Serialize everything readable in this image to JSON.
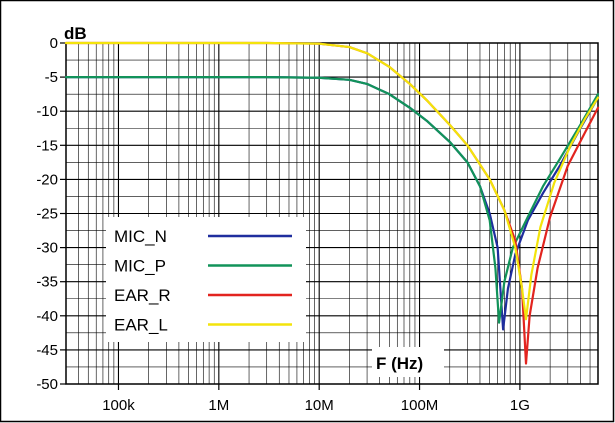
{
  "chart_data": {
    "type": "line",
    "title": "",
    "xlabel": "F (Hz)",
    "ylabel": "dB",
    "x_scale": "log",
    "xlim": [
      30000,
      6000000000
    ],
    "ylim": [
      -50,
      0
    ],
    "grid": true,
    "legend_position": "bottom-left",
    "x_ticks": [
      {
        "value": 100000,
        "label": "100k"
      },
      {
        "value": 1000000,
        "label": "1M"
      },
      {
        "value": 10000000,
        "label": "10M"
      },
      {
        "value": 100000000,
        "label": "100M"
      },
      {
        "value": 1000000000,
        "label": "1G"
      }
    ],
    "y_ticks": [
      {
        "value": 0,
        "label": "0"
      },
      {
        "value": -5,
        "label": "-5"
      },
      {
        "value": -10,
        "label": "-10"
      },
      {
        "value": -15,
        "label": "-15"
      },
      {
        "value": -20,
        "label": "-20"
      },
      {
        "value": -25,
        "label": "-25"
      },
      {
        "value": -30,
        "label": "-30"
      },
      {
        "value": -35,
        "label": "-35"
      },
      {
        "value": -40,
        "label": "-40"
      },
      {
        "value": -45,
        "label": "-45"
      },
      {
        "value": -50,
        "label": "-50"
      }
    ],
    "series": [
      {
        "name": "MIC_N",
        "color": "#1f2e9e",
        "x": [
          30000,
          1000000,
          3000000,
          10000000,
          20000000,
          30000000,
          50000000,
          80000000,
          120000000,
          200000000,
          300000000,
          400000000,
          500000000,
          600000000,
          680000000,
          760000000,
          900000000,
          1200000000,
          1700000000,
          2500000000,
          4000000000,
          6000000000
        ],
        "y": [
          -5,
          -5,
          -5,
          -5.1,
          -5.4,
          -6,
          -7.5,
          -9.5,
          -11.5,
          -14.5,
          -17.5,
          -21,
          -25,
          -30,
          -42,
          -36,
          -31,
          -26,
          -22,
          -18,
          -12.5,
          -8
        ]
      },
      {
        "name": "MIC_P",
        "color": "#12935a",
        "x": [
          30000,
          1000000,
          3000000,
          10000000,
          20000000,
          30000000,
          50000000,
          80000000,
          120000000,
          200000000,
          300000000,
          400000000,
          500000000,
          570000000,
          620000000,
          700000000,
          850000000,
          1200000000,
          1700000000,
          2500000000,
          4000000000,
          6000000000
        ],
        "y": [
          -5,
          -5,
          -5,
          -5.1,
          -5.4,
          -6,
          -7.5,
          -9.5,
          -11.5,
          -14.5,
          -17.5,
          -21,
          -26,
          -33,
          -41,
          -35,
          -30,
          -25.5,
          -21,
          -17,
          -12,
          -7.5
        ]
      },
      {
        "name": "EAR_R",
        "color": "#e2241f",
        "x": [
          30000,
          1000000,
          3000000,
          10000000,
          20000000,
          30000000,
          50000000,
          80000000,
          120000000,
          200000000,
          300000000,
          500000000,
          700000000,
          900000000,
          1050000000,
          1150000000,
          1250000000,
          1500000000,
          2000000000,
          3000000000,
          4500000000,
          6000000000
        ],
        "y": [
          0,
          0,
          0,
          -0.1,
          -0.6,
          -1.5,
          -3.5,
          -6,
          -8.5,
          -12,
          -15,
          -20,
          -24.5,
          -29,
          -36,
          -47,
          -40,
          -33,
          -25.5,
          -18,
          -13,
          -9.5
        ]
      },
      {
        "name": "EAR_L",
        "color": "#f3e40b",
        "x": [
          30000,
          1000000,
          3000000,
          10000000,
          20000000,
          30000000,
          50000000,
          80000000,
          120000000,
          200000000,
          300000000,
          500000000,
          700000000,
          900000000,
          1050000000,
          1150000000,
          1300000000,
          1600000000,
          2200000000,
          3200000000,
          4500000000,
          6000000000
        ],
        "y": [
          0,
          0,
          0,
          -0.1,
          -0.6,
          -1.5,
          -3.5,
          -6,
          -8.5,
          -12,
          -15,
          -20,
          -24.5,
          -30,
          -36,
          -40.5,
          -34,
          -27,
          -20.5,
          -15,
          -11,
          -8
        ]
      }
    ]
  }
}
